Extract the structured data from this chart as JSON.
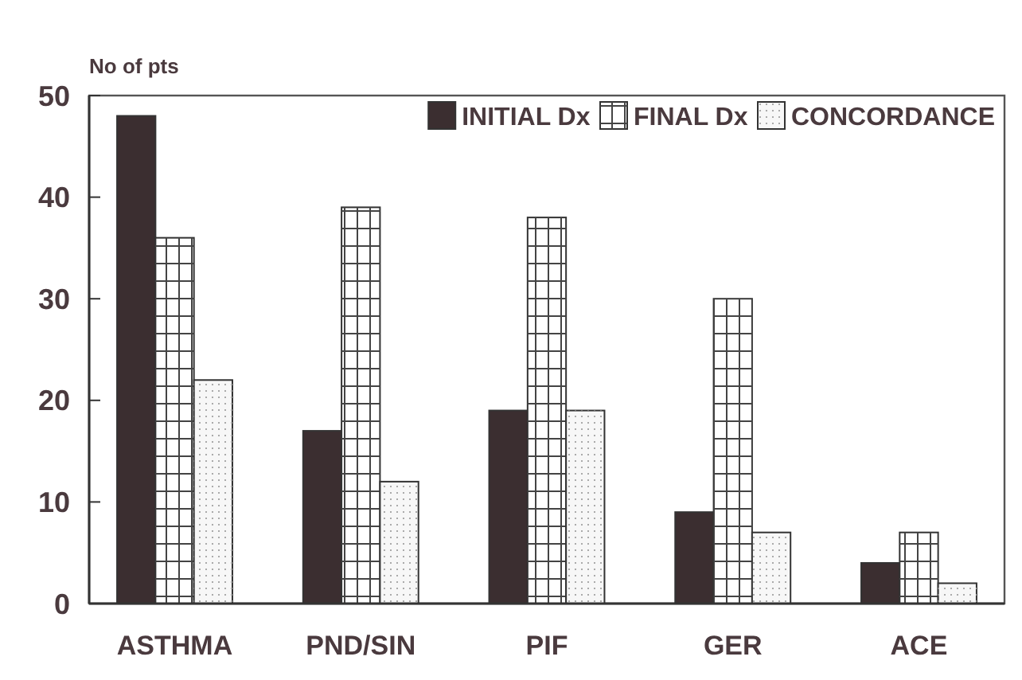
{
  "chart_data": {
    "type": "bar",
    "ylabel": "No of pts",
    "categories": [
      "ASTHMA",
      "PND/SIN",
      "PIF",
      "GER",
      "ACE"
    ],
    "series": [
      {
        "name": "INITIAL Dx",
        "color": "#3b2e30",
        "values": [
          48,
          17,
          19,
          9,
          4
        ]
      },
      {
        "name": "FINAL Dx",
        "color": "#ffffff",
        "values": [
          36,
          39,
          38,
          30,
          7
        ]
      },
      {
        "name": "CONCORDANCE",
        "color": "#f7f7f7",
        "values": [
          22,
          12,
          19,
          7,
          2
        ]
      }
    ],
    "ylim": [
      0,
      50
    ],
    "yticks": [
      0,
      10,
      20,
      30,
      40,
      50
    ],
    "grid": false,
    "legend": "top right"
  }
}
